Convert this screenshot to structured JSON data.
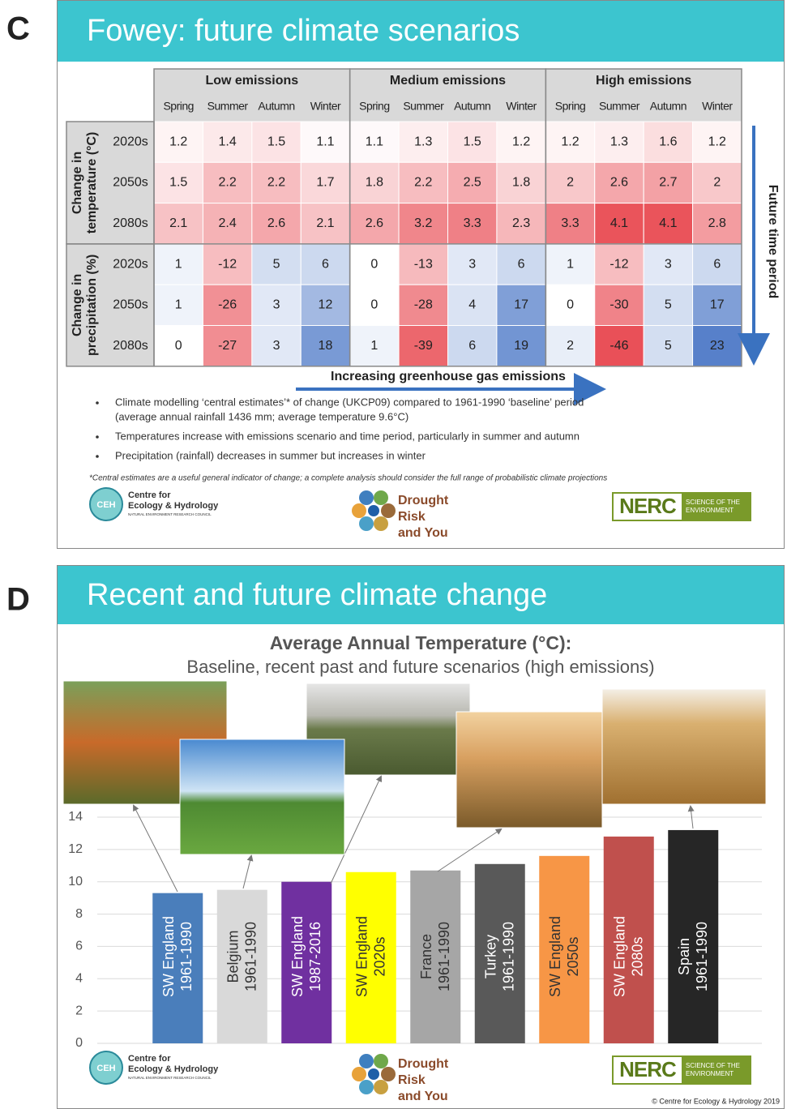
{
  "chart_data": [
    {
      "type": "heatmap",
      "label": "C",
      "title": "Fowey: future climate scenarios",
      "column_groups": [
        "Low emissions",
        "Medium emissions",
        "High emissions"
      ],
      "columns": [
        "Spring",
        "Summer",
        "Autumn",
        "Winter"
      ],
      "colors": {
        "warm": "#e8474f",
        "cool": "#4472c4"
      },
      "row_groups": [
        {
          "name": [
            "Change in",
            "temperature (°C)"
          ],
          "scale": "sequential",
          "rows": [
            "2020s",
            "2050s",
            "2080s"
          ],
          "values": [
            [
              1.2,
              1.4,
              1.5,
              1.1,
              1.1,
              1.3,
              1.5,
              1.2,
              1.2,
              1.3,
              1.6,
              1.2
            ],
            [
              1.5,
              2.2,
              2.2,
              1.7,
              1.8,
              2.2,
              2.5,
              1.8,
              2,
              2.6,
              2.7,
              2
            ],
            [
              2.1,
              2.4,
              2.6,
              2.1,
              2.6,
              3.2,
              3.3,
              2.3,
              3.3,
              4.1,
              4.1,
              2.8
            ]
          ]
        },
        {
          "name": [
            "Change in",
            "precipitation (%)"
          ],
          "scale": "diverging",
          "rows": [
            "2020s",
            "2050s",
            "2080s"
          ],
          "values": [
            [
              1,
              -12,
              5,
              6,
              0,
              -13,
              3,
              6,
              1,
              -12,
              3,
              6
            ],
            [
              1,
              -26,
              3,
              12,
              0,
              -28,
              4,
              17,
              0,
              -30,
              5,
              17
            ],
            [
              0,
              -27,
              3,
              18,
              1,
              -39,
              6,
              19,
              2,
              -46,
              5,
              23
            ]
          ]
        }
      ],
      "time_arrow_label": "Future time period",
      "emission_arrow_label": "Increasing greenhouse gas emissions",
      "bullets": [
        [
          "Climate modelling ‘central estimates’* of change (UKCP09) compared to 1961-1990 ‘baseline’ period",
          "(average annual rainfall 1436 mm; average temperature 9.6°C)"
        ],
        [
          "Temperatures increase with emissions scenario and time period, particularly in summer and autumn"
        ],
        [
          "Precipitation (rainfall) decreases in summer but increases in winter"
        ]
      ],
      "footnote": "*Central estimates are a useful general indicator of change; a complete analysis should consider the full range of probabilistic climate projections"
    },
    {
      "type": "bar",
      "label": "D",
      "title": "Recent and future climate change",
      "chart_title": "Average Annual Temperature (°C):",
      "subtitle": "Baseline, recent past and future scenarios (high emissions)",
      "categories": [
        [
          "SW England",
          "1961-1990"
        ],
        [
          "Belgium",
          "1961-1990"
        ],
        [
          "SW England",
          "1987-2016"
        ],
        [
          "SW England",
          "2020s"
        ],
        [
          "France",
          "1961-1990"
        ],
        [
          "Turkey",
          "1961-1990"
        ],
        [
          "SW England",
          "2050s"
        ],
        [
          "SW England",
          "2080s"
        ],
        [
          "Spain",
          "1961-1990"
        ]
      ],
      "values": [
        9.3,
        9.5,
        10.0,
        10.6,
        10.7,
        11.1,
        11.6,
        12.8,
        13.2
      ],
      "colors": [
        "#4a7ebb",
        "#d9d9d9",
        "#7030a0",
        "#ffff00",
        "#a6a6a6",
        "#595959",
        "#f79646",
        "#c0504d",
        "#262626"
      ],
      "ylim": [
        0,
        14
      ],
      "yticks": [
        0,
        2,
        4,
        6,
        8,
        10,
        12,
        14
      ],
      "grid": true
    }
  ],
  "logos": {
    "ceh_mark": "CEH",
    "ceh_name": [
      "Centre for",
      "Ecology & Hydrology"
    ],
    "ceh_sub": "NATURAL ENVIRONMENT RESEARCH COUNCIL",
    "dry": [
      "Drought",
      "Risk",
      "and You"
    ],
    "nerc": "NERC",
    "nerc_sub": [
      "SCIENCE OF THE",
      "ENVIRONMENT"
    ]
  },
  "copyright": "© Centre for Ecology & Hydrology 2019"
}
